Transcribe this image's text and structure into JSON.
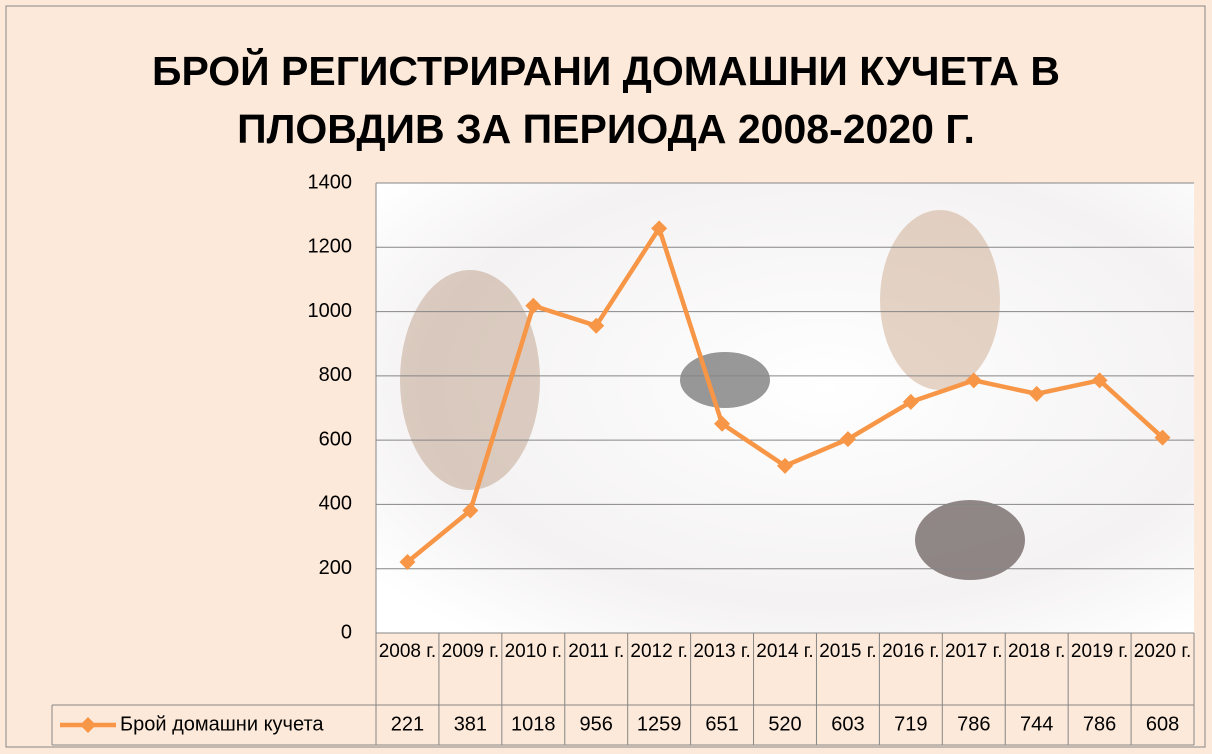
{
  "chart_data": {
    "type": "line",
    "title": "БРОЙ РЕГИСТРИРАНИ ДОМАШНИ КУЧЕТА В ПЛОВДИВ ЗА ПЕРИОДА 2008-2020 Г.",
    "categories": [
      "2008 г.",
      "2009 г.",
      "2010 г.",
      "2011 г.",
      "2012 г.",
      "2013 г.",
      "2014 г.",
      "2015 г.",
      "2016 г.",
      "2017 г.",
      "2018 г.",
      "2019 г.",
      "2020 г."
    ],
    "series": [
      {
        "name": "Брой домашни кучета",
        "color": "#f79646",
        "values": [
          221,
          381,
          1018,
          956,
          1259,
          651,
          520,
          603,
          719,
          786,
          744,
          786,
          608
        ]
      }
    ],
    "ylim": [
      0,
      1400
    ],
    "yticks": [
      0,
      200,
      400,
      600,
      800,
      1000,
      1200,
      1400
    ],
    "grid": true,
    "data_table": true
  }
}
